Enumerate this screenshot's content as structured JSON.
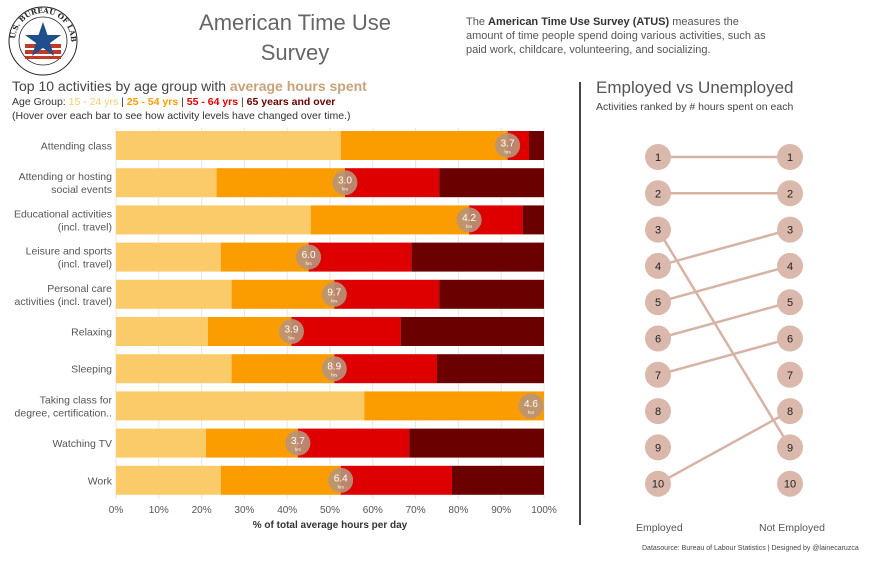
{
  "header": {
    "title_line1": "American Time Use",
    "title_line2": "Survey",
    "intro_bold": "American Time Use Survey (ATUS)",
    "intro_pre": "The ",
    "intro_post": " measures the amount of time people spend doing various activities, such as paid work, childcare, volunteering, and socializing.",
    "logo_text": "U.S. BUREAU OF LABOR STATISTICS"
  },
  "left": {
    "title_pre": "Top 10 activities by age group with ",
    "title_highlight": "average hours spent",
    "age_prefix": "Age Group: ",
    "sep": " | ",
    "hover_note": "(Hover over each bar to see how activity levels have changed over time.)"
  },
  "colors": {
    "age_15_24": "#fbcb6a",
    "age_25_54": "#fb9d00",
    "age_55_64": "#de0000",
    "age_65_plus": "#6b0000",
    "bubble": "#b8957a",
    "slope_node": "#dbb8ac",
    "slope_line": "#d6b3a5",
    "highlight": "#c9a27a"
  },
  "chart_data": [
    {
      "type": "bar",
      "orientation": "horizontal",
      "stacked": "percent",
      "categories": [
        "Attending class",
        "Attending or hosting social events",
        "Educational activities (incl. travel)",
        "Leisure and sports (incl. travel)",
        "Personal care activities (incl. travel)",
        "Relaxing",
        "Sleeping",
        "Taking class for degree, certification..",
        "Watching TV",
        "Work"
      ],
      "category_lines": [
        [
          "Attending class"
        ],
        [
          "Attending or hosting",
          "social events"
        ],
        [
          "Educational activities",
          "(incl. travel)"
        ],
        [
          "Leisure and sports",
          "(incl. travel)"
        ],
        [
          "Personal care",
          "activities (incl. travel)"
        ],
        [
          "Relaxing"
        ],
        [
          "Sleeping"
        ],
        [
          "Taking class for",
          "degree, certification.."
        ],
        [
          "Watching TV"
        ],
        [
          "Work"
        ]
      ],
      "series": [
        {
          "name": "15 - 24 yrs",
          "values": [
            52.5,
            23.5,
            45.5,
            24.5,
            27.0,
            21.5,
            27.0,
            58.0,
            21.0,
            24.5
          ]
        },
        {
          "name": "25 - 54 yrs",
          "values": [
            39.0,
            30.0,
            37.0,
            20.5,
            24.0,
            19.5,
            24.0,
            42.0,
            21.5,
            28.0
          ]
        },
        {
          "name": "55 - 64 yrs",
          "values": [
            5.0,
            22.0,
            12.5,
            24.0,
            24.5,
            25.5,
            24.0,
            0,
            26.0,
            26.0
          ]
        },
        {
          "name": "65 years and over",
          "values": [
            3.5,
            24.5,
            5.0,
            31.0,
            24.5,
            33.5,
            25.0,
            0,
            31.5,
            21.5
          ]
        }
      ],
      "avg_hours": [
        3.7,
        3.0,
        4.2,
        6.0,
        9.7,
        3.9,
        8.9,
        4.6,
        3.7,
        6.4
      ],
      "bubble_unit": "hrs",
      "xlim": [
        0,
        100
      ],
      "x_ticks": [
        "0%",
        "10%",
        "20%",
        "30%",
        "40%",
        "50%",
        "60%",
        "70%",
        "80%",
        "90%",
        "100%"
      ],
      "xlabel": "% of total average hours per day",
      "ylabel": "",
      "grid": true
    },
    {
      "type": "slope",
      "title": "Employed vs Unemployed",
      "subtitle": "Activities ranked by # hours spent on each",
      "columns": [
        "Employed",
        "Not Employed"
      ],
      "ranks": [
        1,
        2,
        3,
        4,
        5,
        6,
        7,
        8,
        9,
        10
      ],
      "links": [
        [
          1,
          1
        ],
        [
          2,
          2
        ],
        [
          3,
          9
        ],
        [
          4,
          3
        ],
        [
          5,
          4
        ],
        [
          6,
          5
        ],
        [
          7,
          6
        ],
        [
          10,
          8
        ]
      ]
    }
  ],
  "footer": "Datasource: Bureau of Labour Statistics | Designed by @lainecaruzca"
}
